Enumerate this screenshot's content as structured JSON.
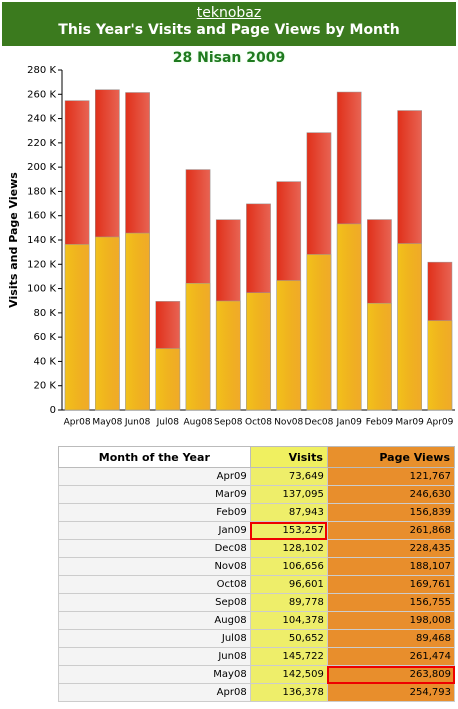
{
  "header": {
    "site": "teknobaz",
    "title": "This Year's Visits and Page Views by Month",
    "date": "28 Nisan 2009"
  },
  "chart_data": {
    "type": "bar",
    "y_label": "Visits and Page Views",
    "categories": [
      "Apr08",
      "May08",
      "Jun08",
      "Jul08",
      "Aug08",
      "Sep08",
      "Oct08",
      "Nov08",
      "Dec08",
      "Jan09",
      "Feb09",
      "Mar09",
      "Apr09"
    ],
    "series": [
      {
        "color": "#e0301a",
        "values": [
          254793,
          263809,
          261474,
          89468,
          198008,
          156755,
          169761,
          188107,
          228435,
          261868,
          156839,
          246630,
          121767
        ]
      },
      {
        "color": "#f2c21c",
        "values": [
          136378,
          142509,
          145722,
          50652,
          104378,
          89778,
          96601,
          106656,
          128102,
          153257,
          87943,
          137095,
          73649
        ]
      }
    ],
    "ylim": [
      0,
      280000
    ],
    "yticks": [
      0,
      {
        "value": 20000,
        "label": "20 K"
      },
      {
        "value": 40000,
        "label": "40 K"
      },
      {
        "value": 60000,
        "label": "60 K"
      },
      {
        "value": 80000,
        "label": "80 K"
      },
      {
        "value": 100000,
        "label": "100 K"
      },
      {
        "value": 120000,
        "label": "120 K"
      },
      {
        "value": 140000,
        "label": "140 K"
      },
      {
        "value": 160000,
        "label": "160 K"
      },
      {
        "value": 180000,
        "label": "180 K"
      },
      {
        "value": 200000,
        "label": "200 K"
      },
      {
        "value": 220000,
        "label": "220 K"
      },
      {
        "value": 240000,
        "label": "240 K"
      },
      {
        "value": 260000,
        "label": "260 K"
      },
      {
        "value": 280000,
        "label": "280 K"
      }
    ]
  },
  "table": {
    "columns": [
      "Month of the Year",
      "Visits",
      "Page Views"
    ],
    "rows": [
      [
        "Apr09",
        "73,649",
        "121,767"
      ],
      [
        "Mar09",
        "137,095",
        "246,630"
      ],
      [
        "Feb09",
        "87,943",
        "156,839"
      ],
      [
        "Jan09",
        "153,257",
        "261,868"
      ],
      [
        "Dec08",
        "128,102",
        "228,435"
      ],
      [
        "Nov08",
        "106,656",
        "188,107"
      ],
      [
        "Oct08",
        "96,601",
        "169,761"
      ],
      [
        "Sep08",
        "89,778",
        "156,755"
      ],
      [
        "Aug08",
        "104,378",
        "198,008"
      ],
      [
        "Jul08",
        "50,652",
        "89,468"
      ],
      [
        "Jun08",
        "145,722",
        "261,474"
      ],
      [
        "May08",
        "142,509",
        "263,809"
      ],
      [
        "Apr08",
        "136,378",
        "254,793"
      ]
    ]
  }
}
